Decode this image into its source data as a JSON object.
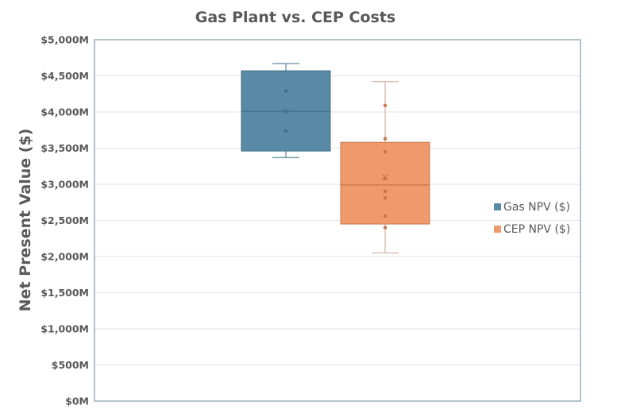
{
  "chart_data": {
    "type": "box",
    "title": "Gas Plant vs. CEP Costs",
    "xlabel": "",
    "ylabel": "Net Present Value ($)",
    "ylim": [
      0,
      5000
    ],
    "y_unit": "$M",
    "yticks": [
      0,
      500,
      1000,
      1500,
      2000,
      2500,
      3000,
      3500,
      4000,
      4500,
      5000
    ],
    "ytick_labels": [
      "$0M",
      "$500M",
      "$1,000M",
      "$1,500M",
      "$2,000M",
      "$2,500M",
      "$3,000M",
      "$3,500M",
      "$4,000M",
      "$4,500M",
      "$5,000M"
    ],
    "grid": true,
    "legend_position": "right",
    "series": [
      {
        "name": "Gas NPV ($)",
        "color": "#5a8ba6",
        "dark_color": "#3f6f88",
        "whisker_low": 3370,
        "q1": 3460,
        "median": 4010,
        "q3": 4570,
        "whisker_high": 4670,
        "mean": 4010,
        "points": [
          4290,
          3740
        ]
      },
      {
        "name": "CEP NPV ($)",
        "color": "#ef9a6c",
        "dark_color": "#c5744b",
        "whisker_low": 2050,
        "q1": 2450,
        "median": 2990,
        "q3": 3580,
        "whisker_high": 4420,
        "mean": 3100,
        "points": [
          4090,
          3630,
          3450,
          3080,
          2900,
          2810,
          2560,
          2400
        ]
      }
    ]
  }
}
